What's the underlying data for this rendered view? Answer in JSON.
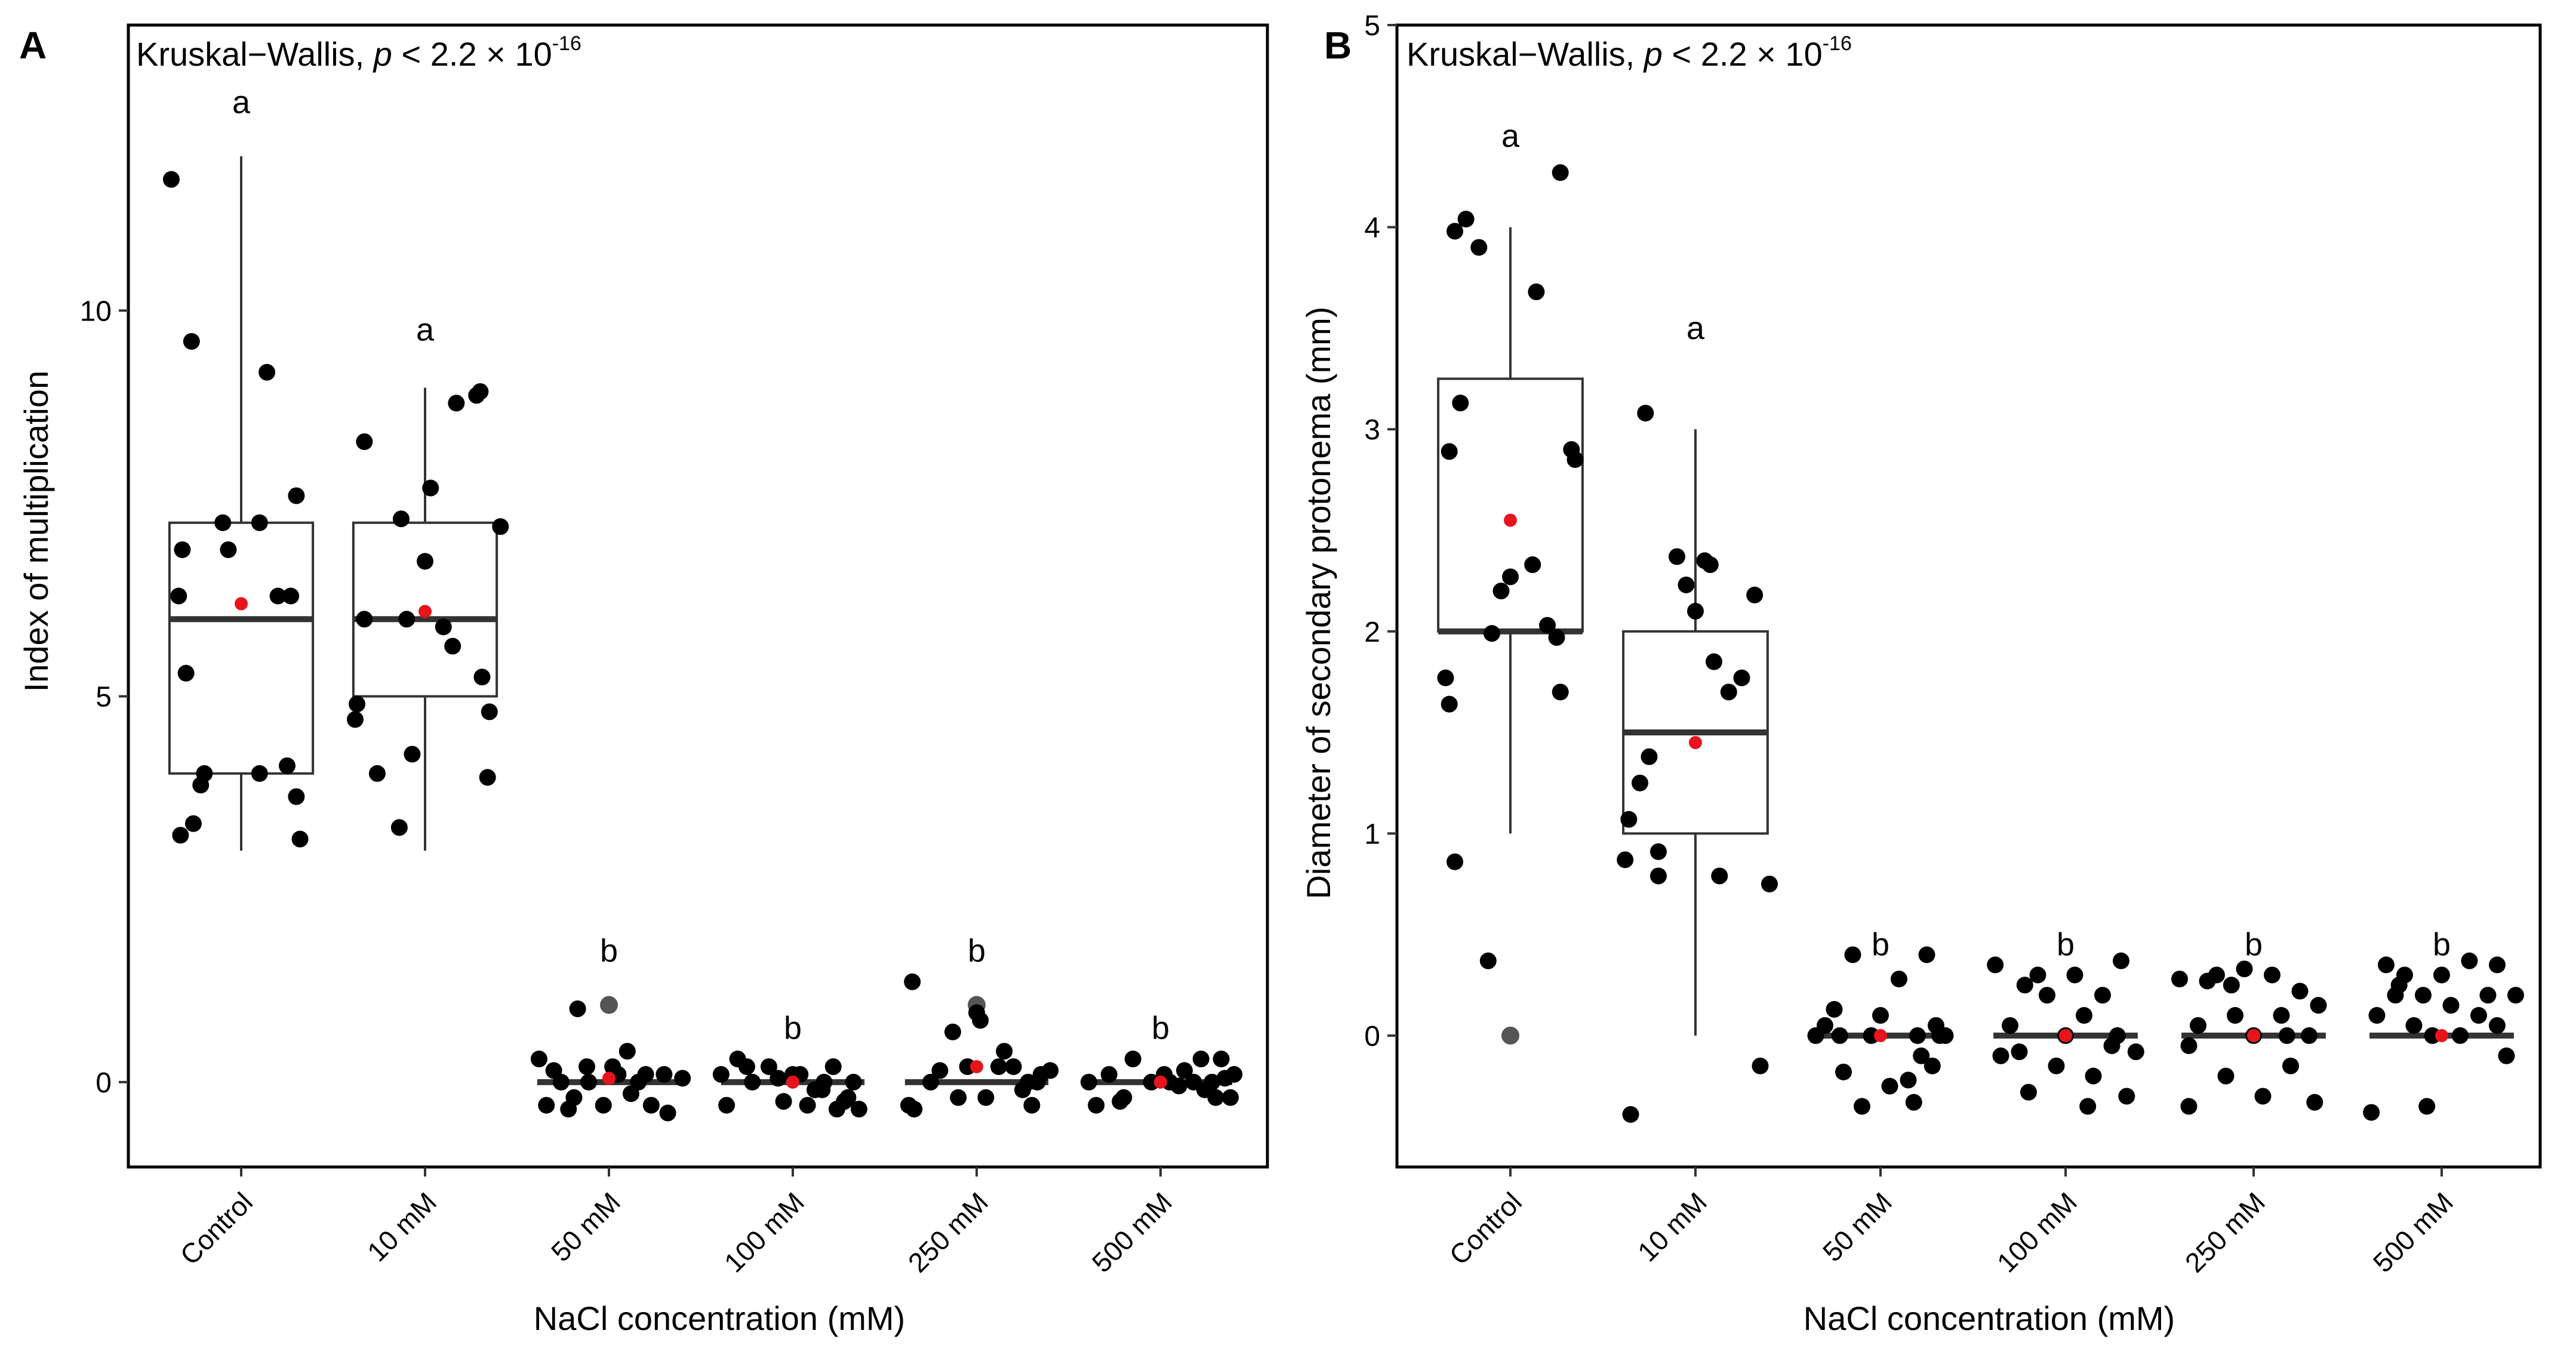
{
  "panels": [
    {
      "letter": "A",
      "test_label": "Kruskal−Wallis, ",
      "test_p": "p",
      "test_rel": " < 2.2 × 10",
      "test_exp": "-16",
      "xlabel": "NaCl concentration (mM)",
      "ylabel": "Index of multiplication"
    },
    {
      "letter": "B",
      "test_label": "Kruskal−Wallis, ",
      "test_p": "p",
      "test_rel": " < 2.2 × 10",
      "test_exp": "-16",
      "xlabel": "NaCl concentration (mM)",
      "ylabel": "Diameter of secondary protonema (mm)"
    }
  ],
  "chart_data": [
    {
      "type": "box",
      "categories": [
        "Control",
        "10 mM",
        "50 mM",
        "100 mM",
        "250 mM",
        "500 mM"
      ],
      "xlabel": "NaCl concentration (mM)",
      "ylabel": "Index of multiplication",
      "ylim": [
        -1.1,
        13.7
      ],
      "yticks": [
        0,
        5,
        10
      ],
      "letters": [
        "a",
        "a",
        "b",
        "b",
        "b",
        "b"
      ],
      "letter_y": [
        12.7,
        9.75,
        1.7,
        0.7,
        1.7,
        0.7
      ],
      "boxes": [
        {
          "q1": 4,
          "median": 6,
          "q3": 7.25,
          "lower": 3,
          "upper": 12
        },
        {
          "q1": 5,
          "median": 6,
          "q3": 7.25,
          "lower": 3,
          "upper": 9
        },
        {
          "q1": 0,
          "median": 0,
          "q3": 0,
          "lower": 0,
          "upper": 0
        },
        {
          "q1": 0,
          "median": 0,
          "q3": 0,
          "lower": 0,
          "upper": 0
        },
        {
          "q1": 0,
          "median": 0,
          "q3": 0,
          "lower": 0,
          "upper": 0
        },
        {
          "q1": 0,
          "median": 0,
          "q3": 0,
          "lower": 0,
          "upper": 0
        }
      ],
      "means": [
        6.2,
        6.1,
        0.05,
        0,
        0.2,
        0
      ],
      "outliers": [
        [],
        [],
        [
          1
        ],
        [],
        [
          1
        ],
        []
      ],
      "points": [
        [
          [
            -0.38,
            11.7
          ],
          [
            -0.27,
            9.6
          ],
          [
            -0.26,
            3.35
          ],
          [
            -0.33,
            3.2
          ],
          [
            -0.22,
            3.85
          ],
          [
            -0.34,
            6.3
          ],
          [
            -0.32,
            6.9
          ],
          [
            -0.3,
            5.3
          ],
          [
            -0.1,
            7.25
          ],
          [
            -0.07,
            6.9
          ],
          [
            0.1,
            7.25
          ],
          [
            0.2,
            6.3
          ],
          [
            0.14,
            9.2
          ],
          [
            0.3,
            7.6
          ],
          [
            0.27,
            6.3
          ],
          [
            0.25,
            4.1
          ],
          [
            0.3,
            3.7
          ],
          [
            0.32,
            3.15
          ],
          [
            0.1,
            4.0
          ],
          [
            -0.2,
            4.0
          ]
        ],
        [
          [
            -0.33,
            8.3
          ],
          [
            -0.38,
            4.7
          ],
          [
            -0.33,
            6.0
          ],
          [
            -0.26,
            4.0
          ],
          [
            -0.13,
            7.3
          ],
          [
            -0.07,
            4.25
          ],
          [
            -0.1,
            6.0
          ],
          [
            0.0,
            6.75
          ],
          [
            0.03,
            7.7
          ],
          [
            -0.14,
            3.3
          ],
          [
            0.1,
            5.9
          ],
          [
            0.15,
            5.65
          ],
          [
            0.17,
            8.8
          ],
          [
            0.28,
            8.9
          ],
          [
            0.31,
            5.25
          ],
          [
            0.35,
            4.8
          ],
          [
            0.34,
            3.95
          ],
          [
            0.41,
            7.2
          ],
          [
            0.3,
            8.95
          ],
          [
            -0.37,
            4.9
          ]
        ],
        [
          [
            -0.38,
            0.3
          ],
          [
            -0.34,
            -0.3
          ],
          [
            -0.3,
            0.15
          ],
          [
            -0.26,
            0.0
          ],
          [
            -0.19,
            -0.2
          ],
          [
            -0.17,
            0.95
          ],
          [
            -0.12,
            0.2
          ],
          [
            -0.11,
            0.0
          ],
          [
            -0.03,
            -0.3
          ],
          [
            0.02,
            0.2
          ],
          [
            0.05,
            0.1
          ],
          [
            0.1,
            0.4
          ],
          [
            0.12,
            -0.15
          ],
          [
            0.16,
            0.0
          ],
          [
            0.2,
            0.1
          ],
          [
            0.23,
            -0.3
          ],
          [
            0.3,
            0.1
          ],
          [
            0.32,
            -0.4
          ],
          [
            0.4,
            0.05
          ],
          [
            -0.22,
            -0.35
          ]
        ],
        [
          [
            -0.39,
            0.1
          ],
          [
            -0.36,
            -0.3
          ],
          [
            -0.3,
            0.3
          ],
          [
            -0.22,
            0.0
          ],
          [
            -0.13,
            0.2
          ],
          [
            -0.05,
            -0.25
          ],
          [
            0.0,
            0.1
          ],
          [
            0.04,
            0.1
          ],
          [
            0.08,
            -0.3
          ],
          [
            0.12,
            -0.1
          ],
          [
            0.17,
            0.0
          ],
          [
            0.22,
            0.2
          ],
          [
            0.24,
            -0.35
          ],
          [
            0.3,
            -0.2
          ],
          [
            0.33,
            0.0
          ],
          [
            0.36,
            -0.35
          ],
          [
            -0.08,
            0.05
          ],
          [
            -0.25,
            0.2
          ],
          [
            0.16,
            -0.1
          ],
          [
            0.28,
            -0.25
          ]
        ],
        [
          [
            -0.35,
            1.3
          ],
          [
            -0.37,
            -0.3
          ],
          [
            -0.34,
            -0.35
          ],
          [
            -0.2,
            0.15
          ],
          [
            -0.13,
            0.65
          ],
          [
            -0.1,
            -0.2
          ],
          [
            -0.05,
            0.2
          ],
          [
            0.02,
            0.8
          ],
          [
            0.0,
            0.9
          ],
          [
            0.05,
            -0.2
          ],
          [
            0.12,
            0.2
          ],
          [
            0.15,
            0.4
          ],
          [
            0.2,
            0.2
          ],
          [
            0.25,
            -0.1
          ],
          [
            0.28,
            0.0
          ],
          [
            0.3,
            -0.3
          ],
          [
            0.35,
            0.1
          ],
          [
            0.4,
            0.15
          ],
          [
            0.33,
            0.0
          ],
          [
            -0.25,
            0.0
          ]
        ],
        [
          [
            -0.39,
            0.0
          ],
          [
            -0.35,
            -0.3
          ],
          [
            -0.28,
            0.1
          ],
          [
            -0.22,
            -0.25
          ],
          [
            -0.15,
            0.3
          ],
          [
            -0.05,
            0.0
          ],
          [
            0.02,
            0.1
          ],
          [
            0.05,
            0.0
          ],
          [
            0.1,
            -0.05
          ],
          [
            0.13,
            0.15
          ],
          [
            0.18,
            0.0
          ],
          [
            0.22,
            0.3
          ],
          [
            0.24,
            -0.1
          ],
          [
            0.28,
            0.0
          ],
          [
            0.33,
            0.3
          ],
          [
            0.35,
            0.05
          ],
          [
            0.38,
            -0.2
          ],
          [
            0.4,
            0.1
          ],
          [
            -0.2,
            -0.2
          ],
          [
            0.3,
            -0.2
          ]
        ]
      ]
    },
    {
      "type": "box",
      "categories": [
        "Control",
        "10 mM",
        "50 mM",
        "100 mM",
        "250 mM",
        "500 mM"
      ],
      "xlabel": "NaCl concentration (mM)",
      "ylabel": "Diameter of secondary protonema (mm)",
      "ylim": [
        -0.65,
        5.0
      ],
      "yticks": [
        0,
        1,
        2,
        3,
        4,
        5
      ],
      "letters": [
        "a",
        "a",
        "b",
        "b",
        "b",
        "b"
      ],
      "letter_y": [
        4.45,
        3.5,
        0.45,
        0.45,
        0.45,
        0.45
      ],
      "boxes": [
        {
          "q1": 2,
          "median": 2,
          "q3": 3.25,
          "lower": 1,
          "upper": 4
        },
        {
          "q1": 1,
          "median": 1.5,
          "q3": 2,
          "lower": 0,
          "upper": 3
        },
        {
          "q1": 0,
          "median": 0,
          "q3": 0,
          "lower": 0,
          "upper": 0
        },
        {
          "q1": 0,
          "median": 0,
          "q3": 0,
          "lower": 0,
          "upper": 0
        },
        {
          "q1": 0,
          "median": 0,
          "q3": 0,
          "lower": 0,
          "upper": 0
        },
        {
          "q1": 0,
          "median": 0,
          "q3": 0,
          "lower": 0,
          "upper": 0
        }
      ],
      "means": [
        2.55,
        1.45,
        0,
        0,
        0,
        0
      ],
      "outliers": [
        [
          0
        ],
        [],
        [],
        [],
        [],
        []
      ],
      "points": [
        [
          [
            -0.35,
            1.77
          ],
          [
            -0.33,
            1.64
          ],
          [
            -0.3,
            0.86
          ],
          [
            -0.27,
            3.13
          ],
          [
            -0.33,
            2.89
          ],
          [
            -0.3,
            3.98
          ],
          [
            -0.24,
            4.04
          ],
          [
            -0.17,
            3.9
          ],
          [
            -0.12,
            0.37
          ],
          [
            -0.1,
            1.99
          ],
          [
            -0.05,
            2.2
          ],
          [
            0.0,
            2.27
          ],
          [
            0.12,
            2.33
          ],
          [
            0.14,
            3.68
          ],
          [
            0.2,
            2.03
          ],
          [
            0.25,
            1.97
          ],
          [
            0.27,
            1.7
          ],
          [
            0.33,
            2.9
          ],
          [
            0.35,
            2.85
          ],
          [
            0.27,
            4.27
          ]
        ],
        [
          [
            -0.38,
            0.87
          ],
          [
            -0.36,
            1.07
          ],
          [
            -0.3,
            1.25
          ],
          [
            -0.27,
            3.08
          ],
          [
            -0.25,
            1.38
          ],
          [
            -0.2,
            0.91
          ],
          [
            -0.2,
            0.79
          ],
          [
            -0.1,
            2.37
          ],
          [
            -0.05,
            2.23
          ],
          [
            0.0,
            2.1
          ],
          [
            0.05,
            2.35
          ],
          [
            0.1,
            1.85
          ],
          [
            0.13,
            0.79
          ],
          [
            0.18,
            1.7
          ],
          [
            0.25,
            1.77
          ],
          [
            0.32,
            2.18
          ],
          [
            0.35,
            -0.15
          ],
          [
            -0.35,
            -0.39
          ],
          [
            0.4,
            0.75
          ],
          [
            0.08,
            2.33
          ]
        ],
        [
          [
            -0.35,
            0.0
          ],
          [
            -0.3,
            0.05
          ],
          [
            -0.25,
            0.13
          ],
          [
            -0.22,
            0.0
          ],
          [
            -0.2,
            -0.18
          ],
          [
            -0.15,
            0.4
          ],
          [
            -0.1,
            -0.35
          ],
          [
            -0.05,
            0.0
          ],
          [
            0.0,
            0.1
          ],
          [
            0.05,
            -0.25
          ],
          [
            0.1,
            0.28
          ],
          [
            0.15,
            -0.22
          ],
          [
            0.2,
            0.0
          ],
          [
            0.22,
            -0.1
          ],
          [
            0.25,
            0.4
          ],
          [
            0.3,
            0.05
          ],
          [
            0.32,
            0.0
          ],
          [
            0.35,
            0.0
          ],
          [
            0.28,
            -0.15
          ],
          [
            0.18,
            -0.33
          ]
        ],
        [
          [
            -0.38,
            0.35
          ],
          [
            -0.35,
            -0.1
          ],
          [
            -0.3,
            0.05
          ],
          [
            -0.25,
            -0.08
          ],
          [
            -0.2,
            -0.28
          ],
          [
            -0.15,
            0.3
          ],
          [
            -0.1,
            0.2
          ],
          [
            -0.05,
            -0.15
          ],
          [
            0.0,
            0.0
          ],
          [
            0.05,
            0.3
          ],
          [
            0.1,
            0.1
          ],
          [
            0.15,
            -0.2
          ],
          [
            0.2,
            0.2
          ],
          [
            0.25,
            -0.05
          ],
          [
            0.28,
            0.0
          ],
          [
            0.3,
            0.37
          ],
          [
            0.33,
            -0.3
          ],
          [
            0.38,
            -0.08
          ],
          [
            -0.22,
            0.25
          ],
          [
            0.12,
            -0.35
          ]
        ],
        [
          [
            -0.4,
            0.28
          ],
          [
            -0.35,
            -0.05
          ],
          [
            -0.3,
            0.05
          ],
          [
            -0.25,
            0.27
          ],
          [
            -0.2,
            0.3
          ],
          [
            -0.15,
            -0.2
          ],
          [
            -0.1,
            0.1
          ],
          [
            -0.05,
            0.33
          ],
          [
            0.0,
            0.0
          ],
          [
            0.05,
            -0.3
          ],
          [
            0.1,
            0.3
          ],
          [
            0.15,
            0.1
          ],
          [
            0.2,
            -0.15
          ],
          [
            0.25,
            0.22
          ],
          [
            0.3,
            0.0
          ],
          [
            0.35,
            0.15
          ],
          [
            0.33,
            -0.33
          ],
          [
            -0.12,
            0.25
          ],
          [
            0.18,
            0.0
          ],
          [
            -0.35,
            -0.35
          ]
        ],
        [
          [
            -0.38,
            -0.38
          ],
          [
            -0.35,
            0.1
          ],
          [
            -0.3,
            0.35
          ],
          [
            -0.25,
            0.2
          ],
          [
            -0.2,
            0.3
          ],
          [
            -0.15,
            0.05
          ],
          [
            -0.1,
            0.2
          ],
          [
            -0.05,
            0.0
          ],
          [
            0.0,
            0.3
          ],
          [
            0.05,
            0.15
          ],
          [
            0.1,
            0.0
          ],
          [
            0.15,
            0.37
          ],
          [
            0.2,
            0.1
          ],
          [
            0.25,
            0.2
          ],
          [
            0.3,
            0.35
          ],
          [
            0.35,
            -0.1
          ],
          [
            0.4,
            0.2
          ],
          [
            -0.08,
            -0.35
          ],
          [
            0.3,
            0.05
          ],
          [
            -0.23,
            0.25
          ]
        ]
      ]
    }
  ]
}
